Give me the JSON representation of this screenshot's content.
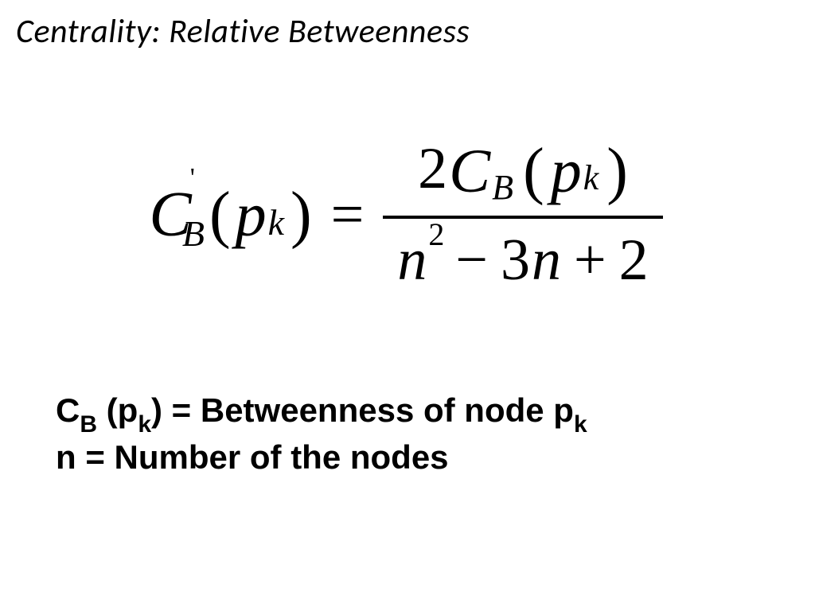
{
  "slide": {
    "title": "Centrality: Relative Betweenness",
    "background_color": "#ffffff",
    "text_color": "#000000",
    "title_fontsize": 42,
    "title_font_style": "italic",
    "title_font_family": "Calibri"
  },
  "formula": {
    "lhs_C": "C",
    "lhs_prime": "'",
    "lhs_sub_B": "B",
    "lhs_paren_open": "(",
    "lhs_p": "p",
    "lhs_sub_k": "k",
    "lhs_paren_close": ")",
    "equals": "=",
    "numerator": {
      "coef": "2",
      "C": "C",
      "sub_B": "B",
      "paren_open": "(",
      "p": "p",
      "sub_k": "k",
      "paren_close": ")"
    },
    "denominator": {
      "n1": "n",
      "sup_2": "2",
      "minus": "−",
      "coef3": "3",
      "n2": "n",
      "plus": "+",
      "const2": "2"
    },
    "font_family": "Times New Roman",
    "font_size": 80,
    "font_style": "italic",
    "line_color": "#000000",
    "line_thickness": 4
  },
  "definitions": {
    "line1": {
      "C": "C",
      "sub_B": "B",
      "space_paren_p": " (p",
      "sub_k": "k",
      "rest": ") = Betweenness of node p",
      "sub_k2": "k"
    },
    "line2": "n = Number of the nodes",
    "font_family": "Arial",
    "font_weight": "700",
    "font_size": 42
  }
}
